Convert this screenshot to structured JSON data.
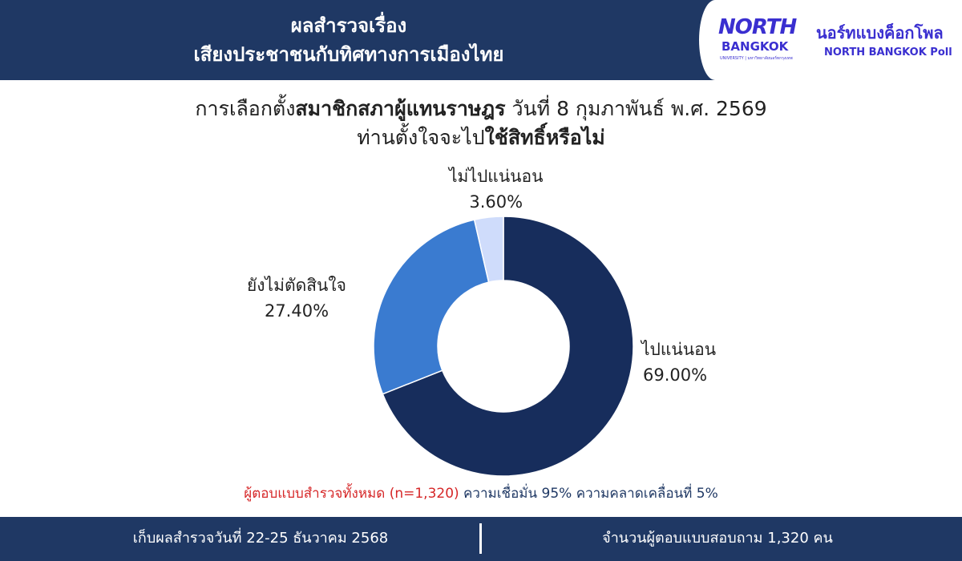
{
  "header": {
    "title_line1": "ผลสำรวจเรื่อง",
    "title_line2": "เสียงประชาชนกับทิศทางการเมืองไทย"
  },
  "logo": {
    "north": "NORTH",
    "bangkok": "BANGKOK",
    "university": "UNIVERSITY | มหาวิทยาลัยนอร์ทกรุงเทพ",
    "poll_th": "นอร์ทแบงค็อกโพล",
    "poll_en": "NORTH BANGKOK Poll"
  },
  "question": {
    "line1_a": "การเลือกตั้ง",
    "line1_b": "สมาชิกสภาผู้แทนราษฎร",
    "line1_c": " วันที่ 8 กุมภาพันธ์ พ.ศ. 2569",
    "line2_a": "ท่านตั้งใจจะไป",
    "line2_b": "ใช้สิทธิ์หรือไม่"
  },
  "chart_data": {
    "type": "pie",
    "donut": true,
    "categories": [
      "ไปแน่นอน",
      "ยังไม่ตัดสินใจ",
      "ไม่ไปแน่นอน"
    ],
    "values": [
      69.0,
      27.4,
      3.6
    ],
    "value_labels": [
      "69.00%",
      "27.40%",
      "3.60%"
    ],
    "colors": [
      "#172d5c",
      "#3a7bd0",
      "#cfdcfb"
    ]
  },
  "note": {
    "sample": "ผู้ตอบแบบสำรวจทั้งหมด (n=1,320)",
    "confidence": " ความเชื่อมั่น 95% ความคลาดเคลื่อนที่ 5%"
  },
  "footer": {
    "dates": "เก็บผลสำรวจวันที่ 22-25 ธันวาคม 2568",
    "respondents": "จำนวนผู้ตอบแบบสอบถาม 1,320 คน"
  }
}
